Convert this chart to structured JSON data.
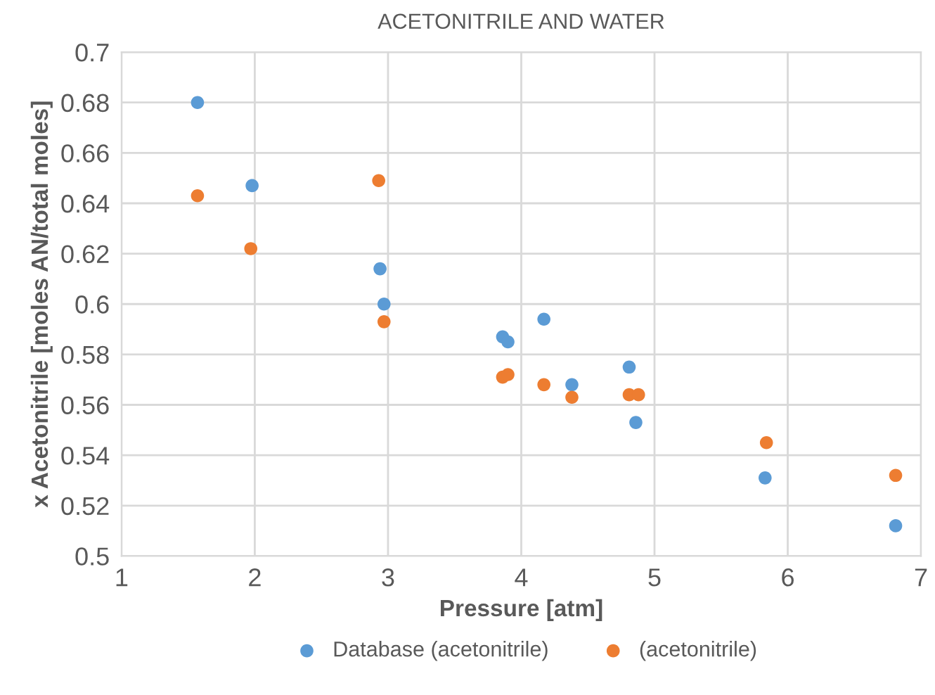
{
  "chart_data": {
    "type": "scatter",
    "title": "ACETONITRILE AND WATER",
    "xlabel": "Pressure [atm]",
    "ylabel": "x Acetonitrile [moles AN/total moles]",
    "series": [
      {
        "name": "Database (acetonitrile)",
        "color": "#5b9bd5",
        "x": [
          1.57,
          1.98,
          2.94,
          2.97,
          3.86,
          3.9,
          4.17,
          4.38,
          4.81,
          4.86,
          5.83,
          6.81
        ],
        "values": [
          0.68,
          0.647,
          0.614,
          0.6,
          0.587,
          0.585,
          0.594,
          0.568,
          0.575,
          0.553,
          0.531,
          0.512
        ]
      },
      {
        "name": "(acetonitrile)",
        "color": "#ed7d31",
        "x": [
          1.57,
          1.97,
          2.93,
          2.97,
          3.86,
          3.9,
          4.17,
          4.38,
          4.81,
          4.88,
          5.84,
          6.81
        ],
        "values": [
          0.643,
          0.622,
          0.649,
          0.593,
          0.571,
          0.572,
          0.568,
          0.563,
          0.564,
          0.564,
          0.545,
          0.532
        ]
      }
    ],
    "xlim": [
      1,
      7
    ],
    "xticks": [
      1,
      2,
      3,
      4,
      5,
      6,
      7
    ],
    "ylim": [
      0.5,
      0.7
    ],
    "yticks": [
      0.5,
      0.52,
      0.54,
      0.56,
      0.58,
      0.6,
      0.62,
      0.64,
      0.66,
      0.68,
      0.7
    ],
    "grid": true,
    "legend": "bottom"
  }
}
